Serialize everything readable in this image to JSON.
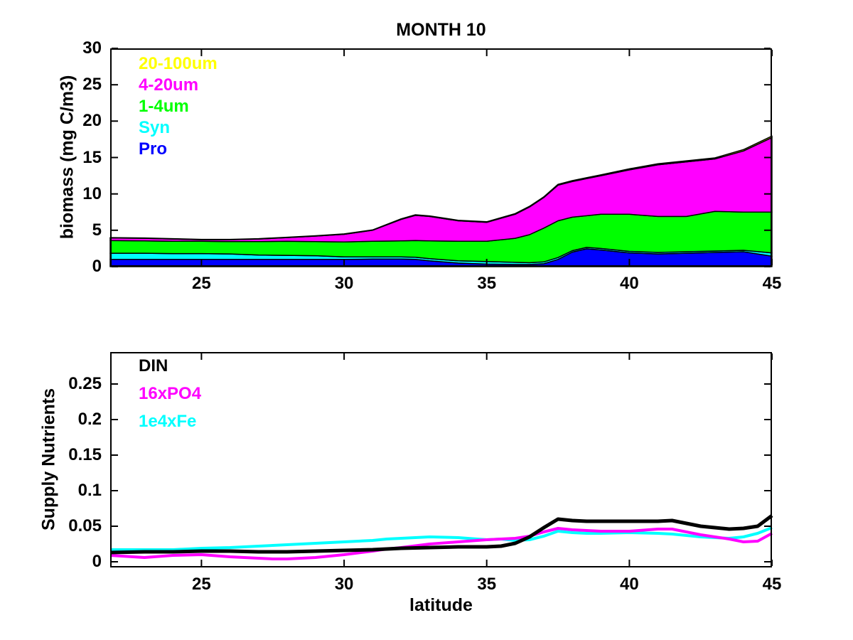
{
  "figure_title": "MONTH 10",
  "chart_data": [
    {
      "type": "area",
      "stacked": true,
      "title": "MONTH 10",
      "xlabel": "",
      "ylabel": "biomass (mg C/m3)",
      "xlim": [
        21.8,
        45
      ],
      "ylim": [
        0,
        30
      ],
      "xticks": [
        25,
        30,
        35,
        40,
        45
      ],
      "yticks": [
        0,
        5,
        10,
        15,
        20,
        25,
        30
      ],
      "grid": false,
      "legend_position": "top-left-inside",
      "x": [
        21.8,
        23,
        24,
        25,
        26,
        27,
        28,
        29,
        30,
        31,
        32,
        32.5,
        33,
        34,
        35,
        36,
        36.5,
        37,
        37.5,
        38,
        38.5,
        39,
        40,
        41,
        42,
        43,
        44,
        45
      ],
      "series": [
        {
          "name": "Pro",
          "color": "#0000ff",
          "values": [
            1.0,
            1.0,
            1.0,
            1.0,
            1.0,
            1.0,
            1.0,
            1.0,
            1.0,
            1.05,
            1.05,
            1.0,
            0.8,
            0.5,
            0.35,
            0.3,
            0.3,
            0.4,
            1.0,
            2.0,
            2.45,
            2.3,
            1.9,
            1.75,
            1.85,
            1.95,
            2.05,
            1.45
          ]
        },
        {
          "name": "Syn",
          "color": "#00ffff",
          "values": [
            0.85,
            0.85,
            0.8,
            0.8,
            0.75,
            0.6,
            0.55,
            0.5,
            0.35,
            0.3,
            0.3,
            0.3,
            0.3,
            0.3,
            0.35,
            0.3,
            0.25,
            0.25,
            0.25,
            0.2,
            0.2,
            0.2,
            0.2,
            0.2,
            0.2,
            0.2,
            0.2,
            0.45
          ]
        },
        {
          "name": "1-4um",
          "color": "#00ff00",
          "values": [
            1.75,
            1.7,
            1.7,
            1.7,
            1.7,
            1.85,
            1.95,
            1.95,
            2.05,
            2.15,
            2.2,
            2.3,
            2.45,
            2.7,
            2.8,
            3.3,
            3.85,
            4.65,
            5.05,
            4.6,
            4.35,
            4.7,
            5.1,
            4.95,
            4.85,
            5.45,
            5.25,
            5.6
          ]
        },
        {
          "name": "4-20um",
          "color": "#ff00ff",
          "values": [
            0.35,
            0.35,
            0.3,
            0.2,
            0.25,
            0.35,
            0.5,
            0.75,
            1.05,
            1.5,
            2.95,
            3.45,
            3.35,
            2.8,
            2.6,
            3.3,
            3.8,
            4.2,
            4.9,
            4.9,
            5.1,
            5.3,
            6.1,
            7.1,
            7.5,
            7.2,
            8.4,
            10.25
          ]
        },
        {
          "name": "20-100um",
          "color": "#ffff00",
          "values": [
            0.05,
            0.05,
            0.05,
            0.05,
            0.05,
            0.05,
            0.05,
            0.05,
            0.05,
            0.05,
            0.08,
            0.08,
            0.08,
            0.08,
            0.08,
            0.1,
            0.1,
            0.1,
            0.12,
            0.12,
            0.12,
            0.12,
            0.15,
            0.15,
            0.15,
            0.15,
            0.18,
            0.2
          ]
        }
      ],
      "legend": [
        {
          "label": "20-100um",
          "color": "#ffff00"
        },
        {
          "label": "4-20um",
          "color": "#ff00ff"
        },
        {
          "label": "1-4um",
          "color": "#00ff00"
        },
        {
          "label": "Syn",
          "color": "#00ffff"
        },
        {
          "label": "Pro",
          "color": "#0000ff"
        }
      ]
    },
    {
      "type": "line",
      "title": "",
      "xlabel": "latitude",
      "ylabel": "Supply Nutrients",
      "xlim": [
        21.8,
        45
      ],
      "ylim": [
        -0.008,
        0.295
      ],
      "xticks": [
        25,
        30,
        35,
        40,
        45
      ],
      "yticks": [
        0,
        0.05,
        0.1,
        0.15,
        0.2,
        0.25
      ],
      "grid": false,
      "legend_position": "top-left-inside",
      "x": [
        21.8,
        23,
        24,
        25,
        26,
        27,
        27.5,
        28,
        29,
        30,
        31,
        31.5,
        32,
        33,
        34,
        35,
        35.5,
        36,
        36.5,
        37,
        37.5,
        38,
        38.5,
        39,
        40,
        41,
        41.5,
        42,
        42.5,
        43,
        43.5,
        44,
        44.5,
        45
      ],
      "series": [
        {
          "name": "DIN",
          "color": "#000000",
          "line_width": 5,
          "values": [
            0.013,
            0.014,
            0.014,
            0.015,
            0.015,
            0.014,
            0.014,
            0.014,
            0.015,
            0.016,
            0.017,
            0.018,
            0.019,
            0.02,
            0.021,
            0.021,
            0.022,
            0.026,
            0.035,
            0.048,
            0.06,
            0.058,
            0.057,
            0.057,
            0.057,
            0.057,
            0.058,
            0.054,
            0.05,
            0.048,
            0.046,
            0.047,
            0.05,
            0.065
          ]
        },
        {
          "name": "16xPO4",
          "color": "#ff00ff",
          "line_width": 4,
          "values": [
            0.009,
            0.006,
            0.009,
            0.01,
            0.007,
            0.005,
            0.004,
            0.004,
            0.006,
            0.01,
            0.015,
            0.018,
            0.02,
            0.025,
            0.028,
            0.031,
            0.032,
            0.033,
            0.036,
            0.042,
            0.047,
            0.045,
            0.044,
            0.043,
            0.043,
            0.046,
            0.046,
            0.042,
            0.038,
            0.035,
            0.032,
            0.028,
            0.029,
            0.04
          ]
        },
        {
          "name": "1e4xFe",
          "color": "#00ffff",
          "line_width": 4,
          "values": [
            0.017,
            0.017,
            0.017,
            0.019,
            0.02,
            0.022,
            0.023,
            0.024,
            0.026,
            0.028,
            0.03,
            0.032,
            0.033,
            0.035,
            0.034,
            0.031,
            0.032,
            0.03,
            0.031,
            0.036,
            0.043,
            0.041,
            0.04,
            0.04,
            0.041,
            0.04,
            0.039,
            0.037,
            0.035,
            0.034,
            0.033,
            0.035,
            0.04,
            0.048
          ]
        }
      ],
      "legend": [
        {
          "label": "DIN",
          "color": "#000000"
        },
        {
          "label": "16xPO4",
          "color": "#ff00ff"
        },
        {
          "label": "1e4xFe",
          "color": "#00ffff"
        }
      ]
    }
  ]
}
